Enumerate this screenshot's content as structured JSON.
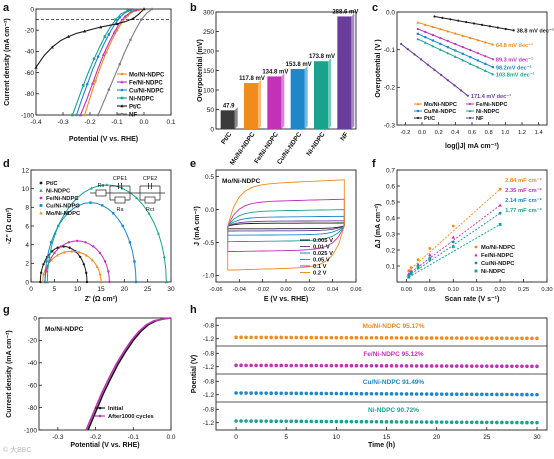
{
  "panel_letters": [
    "a",
    "b",
    "c",
    "d",
    "e",
    "f",
    "g",
    "h"
  ],
  "colors": {
    "orange": "#f28a1c",
    "magenta": "#c132b8",
    "blue": "#1d87c9",
    "teal": "#19a38f",
    "black": "#1a1a1a",
    "gray": "#7f7f7f",
    "purple": "#6a3d9a",
    "bar_ptc": "#3b3b3b",
    "bar_mo": "#f28a1c",
    "bar_fe": "#c132b8",
    "bar_cu": "#1d87c9",
    "bar_ni": "#19a38f",
    "bar_nf": "#6a3d9a"
  },
  "watermark": "© 大BBC",
  "chart_data": [
    {
      "panel": "a",
      "type": "line",
      "xlabel": "Potential (V vs. RHE)",
      "ylabel": "Current density (mA cm⁻²)",
      "xlim": [
        -0.4,
        0.1
      ],
      "ylim": [
        -100,
        0
      ],
      "xticks": [
        "-0.4",
        "-0.3",
        "-0.2",
        "-0.1",
        "0.0",
        "0.1"
      ],
      "yticks": [
        "-100",
        "-80",
        "-60",
        "-40",
        "-20",
        "0"
      ],
      "reference_line_y": -10,
      "series": [
        {
          "name": "Mo/Ni-NDPC",
          "color": "#f28a1c",
          "x": [
            -0.22,
            -0.2,
            -0.18,
            -0.16,
            -0.14,
            -0.12,
            -0.1,
            -0.08,
            -0.06,
            -0.04,
            -0.02,
            0.0
          ],
          "y": [
            -100,
            -84,
            -68,
            -54,
            -41,
            -30,
            -20,
            -12,
            -6,
            -2.5,
            -0.8,
            0
          ]
        },
        {
          "name": "Fe/Ni-NDPC",
          "color": "#c132b8",
          "x": [
            -0.235,
            -0.21,
            -0.19,
            -0.17,
            -0.15,
            -0.13,
            -0.11,
            -0.09,
            -0.07,
            -0.05,
            -0.03,
            0.0
          ],
          "y": [
            -100,
            -84,
            -70,
            -56,
            -43,
            -32,
            -22,
            -13,
            -7,
            -3,
            -1,
            0
          ]
        },
        {
          "name": "Cu/Ni-NDPC",
          "color": "#1d87c9",
          "x": [
            -0.25,
            -0.23,
            -0.21,
            -0.19,
            -0.17,
            -0.15,
            -0.13,
            -0.11,
            -0.09,
            -0.07,
            -0.05,
            -0.02
          ],
          "y": [
            -100,
            -85,
            -71,
            -57,
            -45,
            -34,
            -24,
            -15,
            -8,
            -3.5,
            -1.2,
            0
          ]
        },
        {
          "name": "Ni-NDPC",
          "color": "#19a38f",
          "x": [
            -0.265,
            -0.245,
            -0.225,
            -0.205,
            -0.185,
            -0.165,
            -0.145,
            -0.125,
            -0.105,
            -0.085,
            -0.06,
            -0.03
          ],
          "y": [
            -100,
            -86,
            -72,
            -59,
            -47,
            -36,
            -26,
            -17,
            -10,
            -4.5,
            -1.5,
            0
          ]
        },
        {
          "name": "Pt/C",
          "color": "#1a1a1a",
          "x": [
            -0.4,
            -0.37,
            -0.34,
            -0.31,
            -0.28,
            -0.25,
            -0.22,
            -0.19,
            -0.16,
            -0.13,
            -0.1,
            -0.07,
            -0.04,
            -0.02,
            0.0
          ],
          "y": [
            -55,
            -44,
            -36,
            -30,
            -26,
            -23,
            -21,
            -19,
            -17,
            -15.5,
            -14,
            -12,
            -9,
            -5,
            0
          ]
        },
        {
          "name": "NF",
          "color": "#7f7f7f",
          "x": [
            -0.17,
            -0.15,
            -0.13,
            -0.11,
            -0.09,
            -0.07,
            -0.05,
            -0.03,
            -0.01,
            0.01,
            0.03
          ],
          "y": [
            -100,
            -88,
            -76,
            -64,
            -52,
            -40,
            -29,
            -19,
            -10,
            -4,
            0
          ]
        }
      ]
    },
    {
      "panel": "b",
      "type": "bar",
      "ylabel": "Overpotential (mV)",
      "ylim": [
        0,
        300
      ],
      "yticks": [
        "0",
        "50",
        "100",
        "150",
        "200",
        "250",
        "300"
      ],
      "categories": [
        "Pt/C",
        "Mo/Ni-NDPC",
        "Fe/Ni-NDPC",
        "Cu/Ni-NDPC",
        "Ni-NDPC",
        "NF"
      ],
      "values": [
        47.9,
        117.8,
        134.8,
        153.8,
        173.8,
        288.6
      ],
      "value_labels": [
        "47.9",
        "117.8 mV",
        "134.8 mV",
        "153.8 mV",
        "173.8 mV",
        "288.6 mV"
      ]
    },
    {
      "panel": "c",
      "type": "line",
      "xlabel": "log(|J| mA cm⁻²)",
      "ylabel": "Overpotential (V )",
      "xlim": [
        -0.3,
        1.5
      ],
      "ylim": [
        -0.3,
        0.0
      ],
      "xticks": [
        "-0.2",
        "0.0",
        "0.2",
        "0.4",
        "0.6",
        "0.8",
        "1.0",
        "1.2",
        "1.4"
      ],
      "yticks": [
        "-0.3",
        "-0.2",
        "-0.1",
        "0.0"
      ],
      "annotations": [
        "38.8 mV dec⁻¹",
        "64.8 mV dec⁻¹",
        "89.3 mV dec⁻¹",
        "98.2mV dec⁻¹",
        "103.8mV dec⁻¹",
        "171.4 mV dec⁻¹"
      ],
      "legend": [
        "Mo/Ni-NDPC",
        "Fe/Ni-NDPC",
        "Cu/Ni-NDPC",
        "Ni-NDPC",
        "Pt/C",
        "NF"
      ],
      "series": [
        {
          "name": "Pt/C",
          "color": "#1a1a1a",
          "x0": 0.15,
          "x1": 1.1,
          "y0": -0.012,
          "slope": -0.0388
        },
        {
          "name": "Mo/Ni-NDPC",
          "color": "#f28a1c",
          "x0": -0.05,
          "x1": 0.85,
          "y0": -0.028,
          "slope": -0.0648
        },
        {
          "name": "Fe/Ni-NDPC",
          "color": "#c132b8",
          "x0": -0.05,
          "x1": 0.85,
          "y0": -0.045,
          "slope": -0.0893
        },
        {
          "name": "Cu/Ni-NDPC",
          "color": "#1d87c9",
          "x0": -0.05,
          "x1": 0.85,
          "y0": -0.058,
          "slope": -0.0982
        },
        {
          "name": "Ni-NDPC",
          "color": "#19a38f",
          "x0": -0.05,
          "x1": 0.85,
          "y0": -0.072,
          "slope": -0.1038
        },
        {
          "name": "NF",
          "color": "#6a3d9a",
          "x0": -0.25,
          "x1": 0.55,
          "y0": -0.085,
          "slope": -0.1714
        }
      ]
    },
    {
      "panel": "d",
      "type": "scatter",
      "xlabel": "Z' (Ω cm²)",
      "ylabel": "-Z'' (Ω cm²)",
      "xlim": [
        0,
        30
      ],
      "ylim": [
        0,
        12
      ],
      "xticks": [
        "0",
        "5",
        "10",
        "15",
        "20",
        "25",
        "30"
      ],
      "yticks": [
        "0",
        "2",
        "4",
        "6",
        "8",
        "10",
        "12"
      ],
      "circuit_labels": [
        "Rs",
        "CPE1",
        "CPE2",
        "Ra",
        "Rct"
      ],
      "legend": [
        "Pt/C",
        "Ni-NDPC",
        "Fe/Ni-NDPC",
        "Cu/Ni-NDPC",
        "Mo/Ni-NDPC"
      ],
      "series": [
        {
          "name": "Pt/C",
          "color": "#1a1a1a",
          "x_start": 2.0,
          "x_end": 12.0,
          "peak": 3.8
        },
        {
          "name": "Mo/Ni-NDPC",
          "color": "#f28a1c",
          "x_start": 2.5,
          "x_end": 15.0,
          "peak": 3.3
        },
        {
          "name": "Fe/Ni-NDPC",
          "color": "#c132b8",
          "x_start": 3.0,
          "x_end": 16.8,
          "peak": 4.4
        },
        {
          "name": "Cu/Ni-NDPC",
          "color": "#1d87c9",
          "x_start": 3.0,
          "x_end": 22.5,
          "peak": 8.5
        },
        {
          "name": "Ni-NDPC",
          "color": "#19a38f",
          "x_start": 3.5,
          "x_end": 29.0,
          "peak": 10.4
        }
      ]
    },
    {
      "panel": "e",
      "type": "line",
      "title": "Mo/Ni-NDPC",
      "xlabel": "E (V vs. RHE)",
      "ylabel": "J (mA cm⁻²)",
      "xlim": [
        -0.06,
        0.06
      ],
      "ylim": [
        -1.1,
        0.6
      ],
      "xticks": [
        "-0.06",
        "-0.04",
        "-0.02",
        "0.00",
        "0.02",
        "0.04",
        "0.06"
      ],
      "yticks": [
        "-1.0",
        "-0.5",
        "0.0",
        "0.5"
      ],
      "legend": [
        "0.005 V",
        "0.01 V",
        "0.025 V",
        "0.05 V",
        "0.1 V",
        "0.2 V"
      ],
      "series": [
        {
          "name": "0.005 V",
          "color": "#1a1a1a",
          "half_width": 0.04
        },
        {
          "name": "0.01 V",
          "color": "#6a3d9a",
          "half_width": 0.07
        },
        {
          "name": "0.025 V",
          "color": "#1d87c9",
          "half_width": 0.13
        },
        {
          "name": "0.05 V",
          "color": "#19a38f",
          "half_width": 0.22
        },
        {
          "name": "0.1 V",
          "color": "#c132b8",
          "half_width": 0.36
        },
        {
          "name": "0.2 V",
          "color": "#f28a1c",
          "half_width": 0.62
        }
      ]
    },
    {
      "panel": "f",
      "type": "scatter",
      "xlabel": "Scan rate (V s⁻¹)",
      "ylabel": "ΔJ (mA cm⁻²)",
      "xlim": [
        -0.02,
        0.3
      ],
      "ylim": [
        0.0,
        0.7
      ],
      "xticks": [
        "0.00",
        "0.05",
        "0.10",
        "0.15",
        "0.20",
        "0.25",
        "0.30"
      ],
      "yticks": [
        "0.1",
        "0.2",
        "0.3",
        "0.4",
        "0.5",
        "0.6",
        "0.7"
      ],
      "annotations": [
        "2.84 mF cm⁻²",
        "2.35 mF cm⁻²",
        "2.14 mF cm⁻²",
        "1.77 mF cm⁻²"
      ],
      "legend": [
        "Mo/Ni-NDPC",
        "Fe/Ni-NDPC",
        "Cu/Ni-NDPC",
        "Ni-NDPC"
      ],
      "x": [
        0.005,
        0.01,
        0.025,
        0.05,
        0.1,
        0.2
      ],
      "series": [
        {
          "name": "Mo/Ni-NDPC",
          "color": "#f28a1c",
          "y": [
            0.07,
            0.09,
            0.14,
            0.21,
            0.35,
            0.58
          ]
        },
        {
          "name": "Fe/Ni-NDPC",
          "color": "#c132b8",
          "y": [
            0.05,
            0.07,
            0.11,
            0.17,
            0.28,
            0.48
          ]
        },
        {
          "name": "Cu/Ni-NDPC",
          "color": "#1d87c9",
          "y": [
            0.04,
            0.06,
            0.1,
            0.15,
            0.25,
            0.43
          ]
        },
        {
          "name": "Ni-NDPC",
          "color": "#19a38f",
          "y": [
            0.03,
            0.05,
            0.09,
            0.14,
            0.22,
            0.36
          ]
        }
      ]
    },
    {
      "panel": "g",
      "type": "line",
      "title": "Mo/Ni-NDPC",
      "xlabel": "Potential (V vs. RHE)",
      "ylabel": "Current density (mA cm⁻²)",
      "xlim": [
        -0.35,
        0.0
      ],
      "ylim": [
        -100,
        0
      ],
      "xticks": [
        "-0.3",
        "-0.2",
        "-0.1",
        "0.0"
      ],
      "yticks": [
        "-100",
        "-80",
        "-60",
        "-40",
        "-20",
        "0"
      ],
      "legend": [
        "Initial",
        "After1000 cycles"
      ],
      "series": [
        {
          "name": "Initial",
          "color": "#1a1a1a",
          "x": [
            -0.22,
            -0.2,
            -0.18,
            -0.16,
            -0.14,
            -0.12,
            -0.1,
            -0.08,
            -0.06,
            -0.04,
            -0.02,
            0.0
          ],
          "y": [
            -100,
            -84,
            -68,
            -54,
            -41,
            -30,
            -20,
            -12,
            -6,
            -2.5,
            -0.8,
            0
          ]
        },
        {
          "name": "After1000 cycles",
          "color": "#c132b8",
          "x": [
            -0.225,
            -0.205,
            -0.185,
            -0.165,
            -0.145,
            -0.125,
            -0.105,
            -0.085,
            -0.065,
            -0.045,
            -0.02,
            0.0
          ],
          "y": [
            -100,
            -84,
            -68,
            -54,
            -41,
            -30,
            -20,
            -12,
            -6,
            -2.5,
            -0.8,
            0
          ]
        }
      ]
    },
    {
      "panel": "h",
      "type": "scatter",
      "xlabel": "Time (h)",
      "ylabel": "Poential (V)",
      "xlim": [
        -2,
        31
      ],
      "xticks": [
        "0",
        "5",
        "10",
        "15",
        "20",
        "25",
        "30"
      ],
      "yticks_per_band": [
        "-0.8",
        "-1.2"
      ],
      "bands": [
        {
          "name": "Mo/Ni-NDPC",
          "label": "Mo/Ni-NDPC  95.17%",
          "color": "#f28a1c",
          "start": -1.16,
          "end": -1.19
        },
        {
          "name": "Fe/Ni-NDPC",
          "label": "Fe/Ni-NDPC  95.12%",
          "color": "#c132b8",
          "start": -1.16,
          "end": -1.19
        },
        {
          "name": "Cu/Ni-NDPC",
          "label": "Cu/Ni-NDPC  91.49%",
          "color": "#1d87c9",
          "start": -1.15,
          "end": -1.2
        },
        {
          "name": "Ni-NDPC",
          "label": "Ni-NDPC  90.72%",
          "color": "#19a38f",
          "start": -1.15,
          "end": -1.2
        }
      ]
    }
  ]
}
